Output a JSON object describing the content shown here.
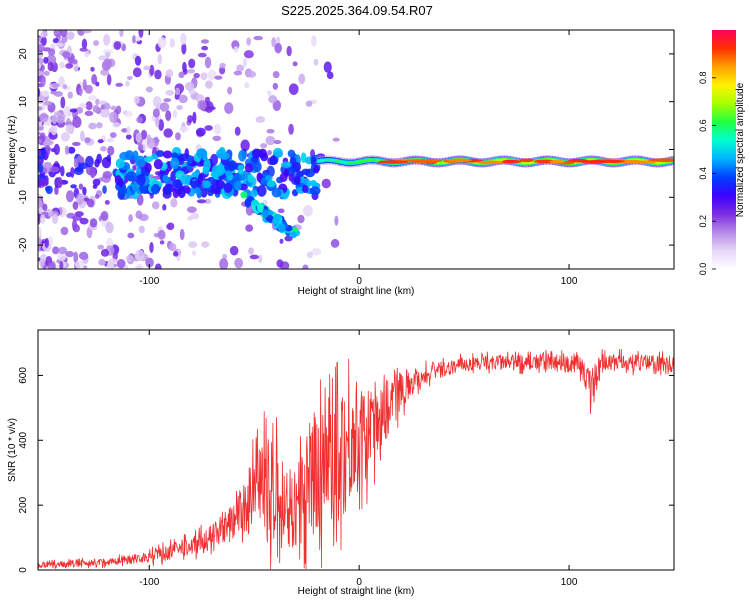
{
  "title": "S225.2025.364.09.54.R07",
  "chart_data": [
    {
      "type": "heatmap",
      "title": "",
      "xlabel": "Height of straight line (km)",
      "ylabel": "Frequency (Hz)",
      "xlim": [
        -153,
        150
      ],
      "ylim": [
        -25,
        25
      ],
      "xticks": [
        -100,
        0,
        100
      ],
      "yticks": [
        -20,
        -10,
        0,
        10,
        20
      ],
      "colorbar": {
        "label": "Normalized spectral amplitude",
        "range": [
          0,
          1
        ],
        "ticks": [
          0.0,
          0.2,
          0.4,
          0.6,
          0.8
        ],
        "colormap": [
          "#ffffff",
          "#e6d6f7",
          "#b58ae8",
          "#7b2de0",
          "#3a00ff",
          "#0040ff",
          "#00b4ff",
          "#00ffd0",
          "#20ff40",
          "#a8ff00",
          "#fff200",
          "#ffa000",
          "#ff3000",
          "#ff0060"
        ]
      },
      "features": [
        {
          "name": "carrier line",
          "from_km": -20,
          "to_km": 150,
          "freq_hz": -2.5,
          "peak_amplitude": 0.85
        },
        {
          "name": "scattered noise region",
          "from_km": -153,
          "to_km": -20,
          "freq_range_hz": [
            -25,
            25
          ],
          "amplitude": 0.25
        },
        {
          "name": "descending branch",
          "from_km": -55,
          "to_km": -30,
          "freq_range_hz": [
            -18,
            -10
          ],
          "amplitude": 0.5
        }
      ]
    },
    {
      "type": "line",
      "title": "",
      "xlabel": "Height of straight line (km)",
      "ylabel": "SNR (10 * v/v)",
      "xlim": [
        -153,
        150
      ],
      "ylim": [
        0,
        740
      ],
      "xticks": [
        -100,
        0,
        100
      ],
      "yticks": [
        0,
        200,
        400,
        600
      ],
      "color": "#ee3030",
      "series": [
        {
          "name": "SNR",
          "x": [
            -153,
            -140,
            -120,
            -100,
            -90,
            -80,
            -70,
            -60,
            -55,
            -50,
            -45,
            -40,
            -35,
            -30,
            -25,
            -20,
            -15,
            -10,
            -5,
            0,
            5,
            10,
            15,
            20,
            30,
            40,
            50,
            60,
            70,
            80,
            90,
            100,
            105,
            110,
            115,
            120,
            130,
            140,
            150
          ],
          "y": [
            15,
            18,
            25,
            40,
            55,
            75,
            100,
            150,
            190,
            230,
            250,
            230,
            200,
            190,
            240,
            300,
            360,
            380,
            390,
            400,
            430,
            480,
            520,
            560,
            600,
            620,
            635,
            640,
            640,
            640,
            640,
            640,
            635,
            560,
            635,
            640,
            640,
            640,
            630
          ],
          "spread": [
            8,
            10,
            12,
            18,
            25,
            30,
            40,
            60,
            80,
            120,
            160,
            160,
            140,
            130,
            170,
            220,
            250,
            230,
            200,
            150,
            140,
            130,
            90,
            60,
            30,
            25,
            22,
            22,
            22,
            25,
            28,
            30,
            30,
            60,
            30,
            28,
            25,
            25,
            25
          ]
        }
      ]
    }
  ]
}
